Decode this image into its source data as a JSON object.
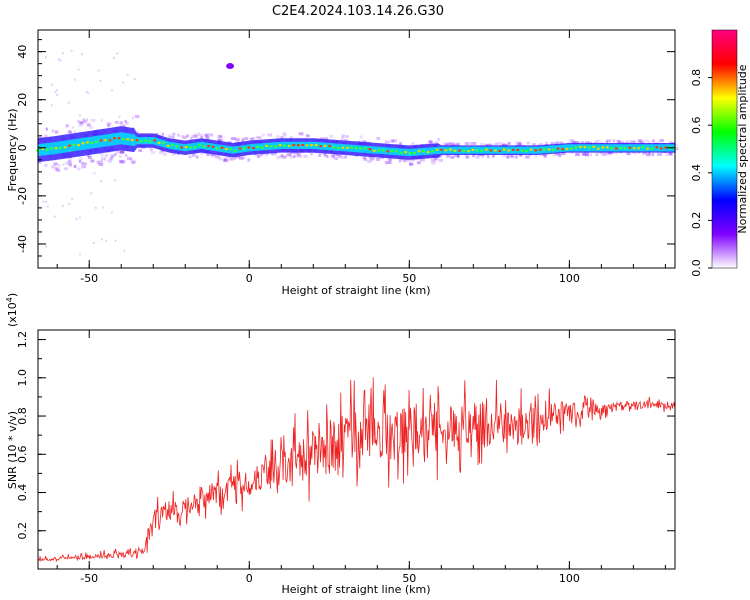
{
  "title": "C2E4.2024.103.14.26.G30",
  "chart_data": [
    {
      "type": "heatmap",
      "xlabel": "Height of straight line (km)",
      "ylabel": "Frequency (Hz)",
      "xlim": [
        -66,
        133
      ],
      "ylim": [
        -50,
        49
      ],
      "xticks": [
        -50,
        0,
        50,
        100
      ],
      "xtick_labels": [
        "-50",
        "0",
        "50",
        "100"
      ],
      "yticks": [
        -40,
        -20,
        0,
        20,
        40
      ],
      "ytick_labels": [
        "-40",
        "-20",
        "0",
        "20",
        "40"
      ],
      "colorbar": {
        "label": "Normalized spectral amplitude",
        "range": [
          0,
          1
        ],
        "ticks": [
          0.0,
          0.2,
          0.4,
          0.6,
          0.8
        ],
        "tick_labels": [
          "0.0",
          "0.2",
          "0.4",
          "0.6",
          "0.8"
        ],
        "colors": [
          "#ffffff",
          "#8000ff",
          "#0000ff",
          "#00ffff",
          "#00ff00",
          "#ffff00",
          "#ff0000",
          "#ff0080"
        ]
      },
      "ridge": {
        "x": [
          -66,
          -60,
          -55,
          -50,
          -45,
          -40,
          -35,
          -30,
          -25,
          -20,
          -15,
          -10,
          -5,
          0,
          10,
          20,
          30,
          40,
          50,
          60,
          70,
          80,
          90,
          100,
          110,
          120,
          133
        ],
        "y": [
          -1,
          0,
          1,
          2,
          3,
          4,
          3,
          3,
          1,
          0,
          1,
          0,
          -1,
          0,
          1,
          1,
          0,
          -1,
          -2,
          -1,
          -1,
          -1,
          -1,
          0,
          0,
          0,
          0
        ]
      },
      "grid": false
    },
    {
      "type": "line",
      "xlabel": "Height of straight line (km)",
      "ylabel": "SNR (10 * v/v)",
      "multiplier_label": "(x10",
      "multiplier_exp": "4",
      "multiplier_close": ")",
      "xlim": [
        -66,
        133
      ],
      "ylim": [
        0.0,
        1.25
      ],
      "xticks": [
        -50,
        0,
        50,
        100
      ],
      "xtick_labels": [
        "-50",
        "0",
        "50",
        "100"
      ],
      "yticks": [
        0.2,
        0.4,
        0.6,
        0.8,
        1.0,
        1.2
      ],
      "ytick_labels": [
        "0.2",
        "0.4",
        "0.6",
        "0.8",
        "1.0",
        "1.2"
      ],
      "color": "#ee2222",
      "series": [
        {
          "x": [
            -66,
            -55,
            -45,
            -38,
            -33,
            -30,
            -25,
            -20,
            -15,
            -10,
            -5,
            0,
            5,
            10,
            15,
            20,
            25,
            30,
            35,
            40,
            45,
            50,
            55,
            60,
            65,
            70,
            75,
            80,
            85,
            90,
            95,
            100,
            105,
            110,
            115,
            120,
            125,
            130,
            133
          ],
          "values": [
            0.05,
            0.06,
            0.07,
            0.08,
            0.1,
            0.25,
            0.3,
            0.33,
            0.37,
            0.4,
            0.42,
            0.45,
            0.5,
            0.55,
            0.58,
            0.6,
            0.64,
            0.68,
            0.72,
            0.72,
            0.72,
            0.73,
            0.74,
            0.74,
            0.74,
            0.75,
            0.76,
            0.76,
            0.77,
            0.78,
            0.8,
            0.82,
            0.83,
            0.84,
            0.85,
            0.85,
            0.86,
            0.86,
            0.86
          ],
          "amplitude": [
            0.02,
            0.02,
            0.03,
            0.03,
            0.05,
            0.12,
            0.12,
            0.1,
            0.12,
            0.14,
            0.14,
            0.16,
            0.2,
            0.22,
            0.25,
            0.25,
            0.28,
            0.3,
            0.3,
            0.32,
            0.3,
            0.3,
            0.28,
            0.28,
            0.26,
            0.25,
            0.24,
            0.22,
            0.2,
            0.18,
            0.14,
            0.1,
            0.08,
            0.06,
            0.05,
            0.05,
            0.04,
            0.04,
            0.04
          ]
        }
      ],
      "grid": false
    }
  ]
}
